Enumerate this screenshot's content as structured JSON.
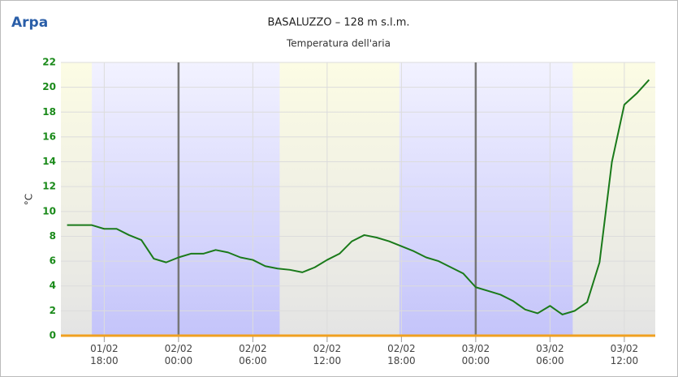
{
  "logo": "Arpa",
  "chart_data": {
    "type": "line",
    "title": "BASALUZZO – 128 m s.l.m.",
    "subtitle": "Temperatura dell'aria",
    "y_label": "°C",
    "x": [
      "01/02 15:00",
      "01/02 16:00",
      "01/02 17:00",
      "01/02 18:00",
      "01/02 19:00",
      "01/02 20:00",
      "01/02 21:00",
      "01/02 22:00",
      "01/02 23:00",
      "02/02 00:00",
      "02/02 01:00",
      "02/02 02:00",
      "02/02 03:00",
      "02/02 04:00",
      "02/02 05:00",
      "02/02 06:00",
      "02/02 07:00",
      "02/02 08:00",
      "02/02 09:00",
      "02/02 10:00",
      "02/02 11:00",
      "02/02 12:00",
      "02/02 13:00",
      "02/02 14:00",
      "02/02 15:00",
      "02/02 16:00",
      "02/02 17:00",
      "02/02 18:00",
      "02/02 19:00",
      "02/02 20:00",
      "02/02 21:00",
      "02/02 22:00",
      "02/02 23:00",
      "03/02 00:00",
      "03/02 01:00",
      "03/02 02:00",
      "03/02 03:00",
      "03/02 04:00",
      "03/02 05:00",
      "03/02 06:00",
      "03/02 07:00",
      "03/02 08:00",
      "03/02 09:00",
      "03/02 10:00",
      "03/02 11:00",
      "03/02 12:00",
      "03/02 13:00",
      "03/02 14:00"
    ],
    "values": [
      8.9,
      8.9,
      8.9,
      8.6,
      8.6,
      8.1,
      7.7,
      6.2,
      5.9,
      6.3,
      6.6,
      6.6,
      6.9,
      6.7,
      6.3,
      6.1,
      5.6,
      5.4,
      5.3,
      5.1,
      5.5,
      6.1,
      6.6,
      7.6,
      8.1,
      7.9,
      7.6,
      7.2,
      6.8,
      6.3,
      6.0,
      5.5,
      5.0,
      3.9,
      3.6,
      3.3,
      2.8,
      2.1,
      1.8,
      2.4,
      1.7,
      2.0,
      2.7,
      5.9,
      14.0,
      18.6,
      19.5,
      20.6
    ],
    "color": "#1a7a1a",
    "xlim": [
      "01/02 14:30",
      "03/02 14:30"
    ],
    "xticks": [
      "01/02 18:00",
      "02/02 00:00",
      "02/02 06:00",
      "02/02 12:00",
      "02/02 18:00",
      "03/02 00:00",
      "03/02 06:00",
      "03/02 12:00"
    ],
    "ylim": [
      0,
      22
    ],
    "yticks": [
      0,
      2,
      4,
      6,
      8,
      10,
      12,
      14,
      16,
      18,
      20,
      22
    ],
    "grid": true,
    "night_bands": [
      [
        "01/02 17:00",
        "02/02 08:10"
      ],
      [
        "02/02 17:50",
        "03/02 07:50"
      ]
    ],
    "day_lines": [
      "02/02 00:00",
      "03/02 00:00"
    ]
  }
}
